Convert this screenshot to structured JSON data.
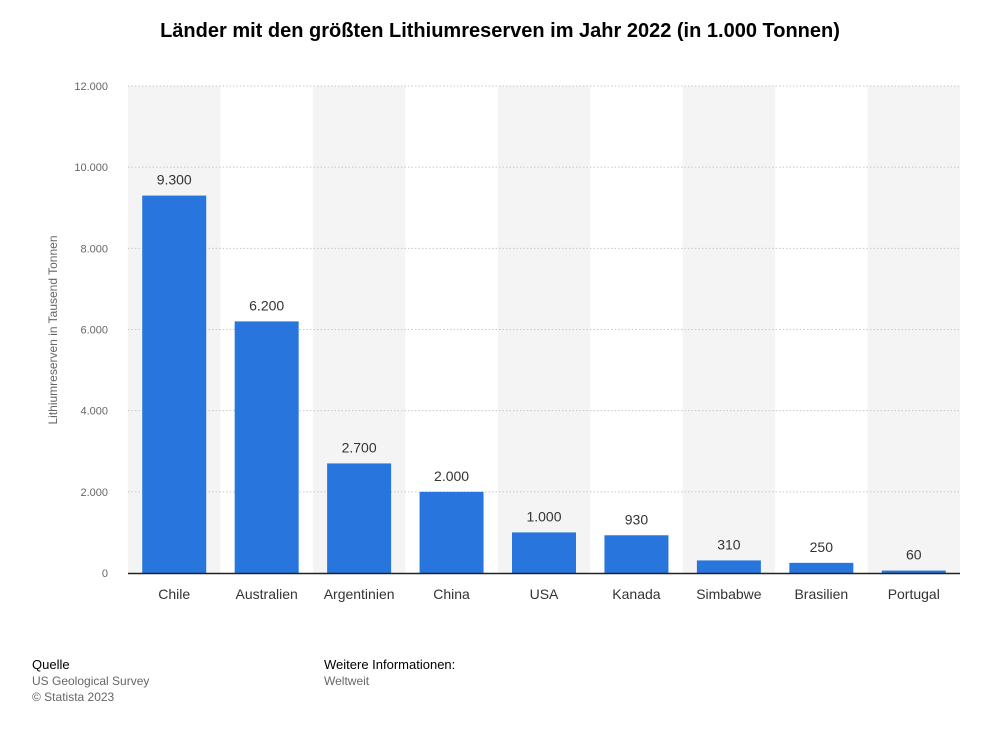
{
  "title": "Länder mit den größten Lithiumreserven im Jahr 2022 (in 1.000 Tonnen)",
  "chart_data": {
    "type": "bar",
    "categories": [
      "Chile",
      "Australien",
      "Argentinien",
      "China",
      "USA",
      "Kanada",
      "Simbabwe",
      "Brasilien",
      "Portugal"
    ],
    "values": [
      9300,
      6200,
      2700,
      2000,
      1000,
      930,
      310,
      250,
      60
    ],
    "value_labels": [
      "9.300",
      "6.200",
      "2.700",
      "2.000",
      "1.000",
      "930",
      "310",
      "250",
      "60"
    ],
    "ylabel": "Lithiumreserven in Tausend Tonnen",
    "xlabel": "",
    "ylim": [
      0,
      12000
    ],
    "yticks": [
      0,
      2000,
      4000,
      6000,
      8000,
      10000,
      12000
    ],
    "ytick_labels": [
      "0",
      "2.000",
      "4.000",
      "6.000",
      "8.000",
      "10.000",
      "12.000"
    ],
    "grid": true,
    "bar_color": "#2876dd",
    "alt_band_color": "#f4f4f4"
  },
  "footer": {
    "source_heading": "Quelle",
    "source_text": "US Geological Survey",
    "copyright": "© Statista 2023",
    "info_heading": "Weitere Informationen:",
    "info_text": "Weltweit"
  }
}
